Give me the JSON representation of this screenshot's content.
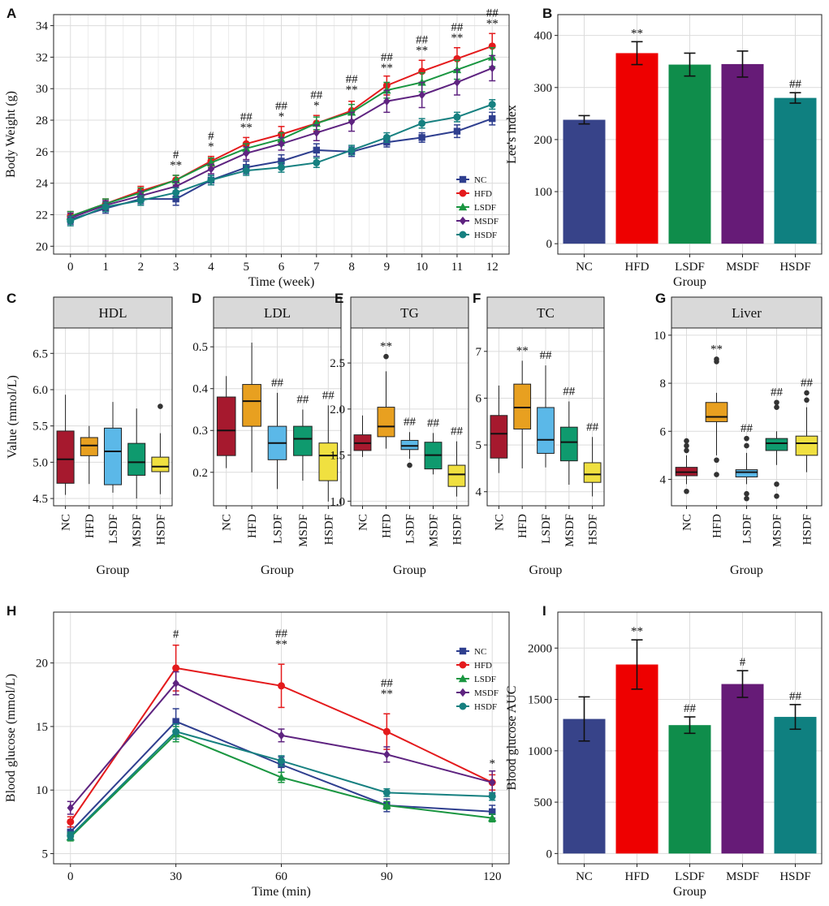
{
  "chart_data": [
    {
      "id": "A",
      "panel_label": "A",
      "type": "line",
      "xlabel": "Time (week)",
      "ylabel": "Body Weight (g)",
      "x": [
        0,
        1,
        2,
        3,
        4,
        5,
        6,
        7,
        8,
        9,
        10,
        11,
        12
      ],
      "xticks": [
        "0",
        "1",
        "2",
        "3",
        "4",
        "5",
        "6",
        "7",
        "8",
        "9",
        "10",
        "11",
        "12"
      ],
      "ylim": [
        19.5,
        34.7
      ],
      "yticks": [
        20,
        22,
        24,
        26,
        28,
        30,
        32,
        34
      ],
      "series": [
        {
          "name": "NC",
          "color": "#2f3f8f",
          "marker": "square",
          "values": [
            21.7,
            22.4,
            23.0,
            23.0,
            24.2,
            25.0,
            25.4,
            26.1,
            26.0,
            26.6,
            26.9,
            27.3,
            28.1
          ],
          "err": [
            0.3,
            0.3,
            0.3,
            0.4,
            0.3,
            0.4,
            0.4,
            0.4,
            0.3,
            0.3,
            0.3,
            0.4,
            0.4
          ]
        },
        {
          "name": "HFD",
          "color": "#e41a1c",
          "marker": "circle",
          "values": [
            21.9,
            22.7,
            23.5,
            24.2,
            25.4,
            26.5,
            27.1,
            27.8,
            28.6,
            30.2,
            31.1,
            31.9,
            32.7
          ],
          "err": [
            0.3,
            0.3,
            0.3,
            0.3,
            0.3,
            0.4,
            0.5,
            0.5,
            0.6,
            0.6,
            0.7,
            0.7,
            0.8
          ]
        },
        {
          "name": "LSDF",
          "color": "#1a9641",
          "marker": "triangle",
          "values": [
            21.9,
            22.7,
            23.4,
            24.2,
            25.3,
            26.2,
            26.8,
            27.8,
            28.5,
            29.9,
            30.4,
            31.2,
            32.0
          ],
          "err": [
            0.3,
            0.3,
            0.3,
            0.3,
            0.3,
            0.3,
            0.4,
            0.4,
            0.5,
            0.5,
            0.6,
            0.6,
            0.6
          ]
        },
        {
          "name": "MSDF",
          "color": "#5e2380",
          "marker": "diamond",
          "values": [
            21.8,
            22.6,
            23.2,
            23.8,
            24.9,
            25.9,
            26.5,
            27.2,
            27.9,
            29.2,
            29.6,
            30.4,
            31.3
          ],
          "err": [
            0.3,
            0.3,
            0.3,
            0.3,
            0.3,
            0.4,
            0.4,
            0.5,
            0.6,
            0.7,
            0.8,
            0.8,
            0.8
          ]
        },
        {
          "name": "HSDF",
          "color": "#168080",
          "marker": "circle",
          "values": [
            21.6,
            22.5,
            22.9,
            23.4,
            24.2,
            24.8,
            25.0,
            25.3,
            26.1,
            26.9,
            27.8,
            28.2,
            29.0
          ],
          "err": [
            0.3,
            0.3,
            0.3,
            0.3,
            0.3,
            0.3,
            0.3,
            0.3,
            0.3,
            0.3,
            0.3,
            0.3,
            0.3
          ]
        }
      ],
      "annotations": [
        {
          "x": 3,
          "y": 24.9,
          "lines": [
            "#",
            "**"
          ]
        },
        {
          "x": 4,
          "y": 26.1,
          "lines": [
            "#",
            "*"
          ]
        },
        {
          "x": 5,
          "y": 27.3,
          "lines": [
            "##",
            "**"
          ]
        },
        {
          "x": 6,
          "y": 28.0,
          "lines": [
            "##",
            "*"
          ]
        },
        {
          "x": 7,
          "y": 28.7,
          "lines": [
            "##",
            "*"
          ]
        },
        {
          "x": 8,
          "y": 29.7,
          "lines": [
            "##",
            "**"
          ]
        },
        {
          "x": 9,
          "y": 31.1,
          "lines": [
            "##",
            "**"
          ]
        },
        {
          "x": 10,
          "y": 32.2,
          "lines": [
            "##",
            "**"
          ]
        },
        {
          "x": 11,
          "y": 33.0,
          "lines": [
            "##",
            "**"
          ]
        },
        {
          "x": 12,
          "y": 33.9,
          "lines": [
            "##",
            "**"
          ]
        }
      ],
      "legend": "bottom-right"
    },
    {
      "id": "B",
      "panel_label": "B",
      "type": "bar",
      "xlabel": "Group",
      "ylabel": "Lee's index",
      "categories": [
        "NC",
        "HFD",
        "LSDF",
        "MSDF",
        "HSDF"
      ],
      "values": [
        238,
        366,
        344,
        345,
        280
      ],
      "err": [
        8,
        22,
        22,
        25,
        10
      ],
      "colors": [
        "#374389",
        "#ee0000",
        "#0f8d4b",
        "#661b77",
        "#0f8080"
      ],
      "sig": [
        "",
        "**",
        "",
        "",
        "##"
      ],
      "ylim": [
        -20,
        440
      ],
      "yticks": [
        0,
        100,
        200,
        300,
        400
      ]
    },
    {
      "id": "C",
      "panel_label": "C",
      "type": "box",
      "strip": "HDL",
      "xlabel": "Group",
      "ylabel": "Value (mmol/L)",
      "categories": [
        "NC",
        "HFD",
        "LSDF",
        "MSDF",
        "HSDF"
      ],
      "colors": [
        "#a6192e",
        "#e8a020",
        "#5bb8e8",
        "#0f9a6e",
        "#f0e040"
      ],
      "ylim": [
        4.4,
        6.85
      ],
      "yticks": [
        4.5,
        5.0,
        5.5,
        6.0,
        6.5
      ],
      "boxes": [
        {
          "min": 4.55,
          "q1": 4.71,
          "median": 5.04,
          "q3": 5.43,
          "max": 5.93,
          "outliers": []
        },
        {
          "min": 4.7,
          "q1": 5.09,
          "median": 5.23,
          "q3": 5.34,
          "max": 5.5,
          "outliers": []
        },
        {
          "min": 4.58,
          "q1": 4.69,
          "median": 5.15,
          "q3": 5.47,
          "max": 5.83,
          "outliers": []
        },
        {
          "min": 4.5,
          "q1": 4.82,
          "median": 5.0,
          "q3": 5.26,
          "max": 5.74,
          "outliers": []
        },
        {
          "min": 4.56,
          "q1": 4.87,
          "median": 4.94,
          "q3": 5.07,
          "max": 5.4,
          "outliers": [
            5.77
          ]
        }
      ],
      "sig": [
        "",
        "",
        "",
        "",
        ""
      ]
    },
    {
      "id": "D",
      "panel_label": "D",
      "type": "box",
      "strip": "LDL",
      "xlabel": "Group",
      "ylabel": "",
      "categories": [
        "NC",
        "HFD",
        "LSDF",
        "MSDF",
        "HSDF"
      ],
      "colors": [
        "#a6192e",
        "#e8a020",
        "#5bb8e8",
        "#0f9a6e",
        "#f0e040"
      ],
      "ylim": [
        0.12,
        0.545
      ],
      "yticks": [
        0.2,
        0.3,
        0.4,
        0.5
      ],
      "boxes": [
        {
          "min": 0.21,
          "q1": 0.24,
          "median": 0.3,
          "q3": 0.38,
          "max": 0.43,
          "outliers": []
        },
        {
          "min": 0.2,
          "q1": 0.31,
          "median": 0.37,
          "q3": 0.41,
          "max": 0.51,
          "outliers": []
        },
        {
          "min": 0.16,
          "q1": 0.23,
          "median": 0.27,
          "q3": 0.31,
          "max": 0.39,
          "outliers": []
        },
        {
          "min": 0.18,
          "q1": 0.24,
          "median": 0.28,
          "q3": 0.31,
          "max": 0.35,
          "outliers": []
        },
        {
          "min": 0.13,
          "q1": 0.18,
          "median": 0.24,
          "q3": 0.27,
          "max": 0.36,
          "outliers": []
        }
      ],
      "sig": [
        "",
        "",
        "##",
        "##",
        "##"
      ]
    },
    {
      "id": "E",
      "panel_label": "E",
      "type": "box",
      "strip": "TG",
      "xlabel": "Group",
      "ylabel": "",
      "categories": [
        "NC",
        "HFD",
        "LSDF",
        "MSDF",
        "HSDF"
      ],
      "colors": [
        "#a6192e",
        "#e8a020",
        "#5bb8e8",
        "#0f9a6e",
        "#f0e040"
      ],
      "ylim": [
        0.95,
        2.88
      ],
      "yticks": [
        1.0,
        1.5,
        2.0,
        2.5
      ],
      "boxes": [
        {
          "min": 1.48,
          "q1": 1.55,
          "median": 1.63,
          "q3": 1.72,
          "max": 1.93,
          "outliers": []
        },
        {
          "min": 1.57,
          "q1": 1.7,
          "median": 1.81,
          "q3": 2.02,
          "max": 2.41,
          "outliers": [
            2.57
          ]
        },
        {
          "min": 1.46,
          "q1": 1.56,
          "median": 1.6,
          "q3": 1.66,
          "max": 1.75,
          "outliers": [
            1.39
          ]
        },
        {
          "min": 1.29,
          "q1": 1.35,
          "median": 1.5,
          "q3": 1.64,
          "max": 1.74,
          "outliers": []
        },
        {
          "min": 1.05,
          "q1": 1.16,
          "median": 1.29,
          "q3": 1.39,
          "max": 1.65,
          "outliers": []
        }
      ],
      "sig": [
        "",
        "**",
        "##",
        "##",
        "##"
      ]
    },
    {
      "id": "F",
      "panel_label": "F",
      "type": "box",
      "strip": "TC",
      "xlabel": "Group",
      "ylabel": "",
      "categories": [
        "NC",
        "HFD",
        "LSDF",
        "MSDF",
        "HSDF"
      ],
      "colors": [
        "#a6192e",
        "#e8a020",
        "#5bb8e8",
        "#0f9a6e",
        "#f0e040"
      ],
      "ylim": [
        3.7,
        7.5
      ],
      "yticks": [
        4,
        5,
        6,
        7
      ],
      "boxes": [
        {
          "min": 4.4,
          "q1": 4.72,
          "median": 5.24,
          "q3": 5.63,
          "max": 6.27,
          "outliers": []
        },
        {
          "min": 4.5,
          "q1": 5.34,
          "median": 5.8,
          "q3": 6.3,
          "max": 6.8,
          "outliers": []
        },
        {
          "min": 4.52,
          "q1": 4.82,
          "median": 5.11,
          "q3": 5.8,
          "max": 6.7,
          "outliers": []
        },
        {
          "min": 4.15,
          "q1": 4.66,
          "median": 5.06,
          "q3": 5.38,
          "max": 5.93,
          "outliers": []
        },
        {
          "min": 3.9,
          "q1": 4.2,
          "median": 4.37,
          "q3": 4.62,
          "max": 5.17,
          "outliers": []
        }
      ],
      "sig": [
        "",
        "**",
        "##",
        "##",
        "##"
      ]
    },
    {
      "id": "G",
      "panel_label": "G",
      "type": "box",
      "strip": "Liver",
      "xlabel": "Group",
      "ylabel": "",
      "categories": [
        "NC",
        "HFD",
        "LSDF",
        "MSDF",
        "HSDF"
      ],
      "colors": [
        "#a6192e",
        "#e8a020",
        "#5bb8e8",
        "#0f9a6e",
        "#f0e040"
      ],
      "ylim": [
        2.9,
        10.3
      ],
      "yticks": [
        4,
        6,
        8,
        10
      ],
      "boxes": [
        {
          "min": 3.8,
          "q1": 4.15,
          "median": 4.3,
          "q3": 4.5,
          "max": 5.0,
          "outliers": [
            3.5,
            5.2,
            5.4,
            5.6
          ]
        },
        {
          "min": 5.0,
          "q1": 6.4,
          "median": 6.6,
          "q3": 7.2,
          "max": 7.6,
          "outliers": [
            4.2,
            4.8,
            8.9,
            9.0
          ]
        },
        {
          "min": 3.8,
          "q1": 4.1,
          "median": 4.3,
          "q3": 4.4,
          "max": 5.1,
          "outliers": [
            3.2,
            3.4,
            5.4,
            5.7
          ]
        },
        {
          "min": 4.6,
          "q1": 5.2,
          "median": 5.5,
          "q3": 5.7,
          "max": 6.0,
          "outliers": [
            3.3,
            3.8,
            7.0,
            7.2
          ]
        },
        {
          "min": 4.3,
          "q1": 5.0,
          "median": 5.5,
          "q3": 5.8,
          "max": 7.0,
          "outliers": [
            7.3,
            7.6
          ]
        }
      ],
      "sig": [
        "",
        "**",
        "##",
        "##",
        "##"
      ]
    },
    {
      "id": "H",
      "panel_label": "H",
      "type": "line",
      "xlabel": "Time (min)",
      "ylabel": "Blood glucose (mmol/L)",
      "x": [
        0,
        30,
        60,
        90,
        120
      ],
      "xticks": [
        "0",
        "30",
        "60",
        "90",
        "120"
      ],
      "ylim": [
        4.2,
        24.0
      ],
      "yticks": [
        5,
        10,
        15,
        20
      ],
      "series": [
        {
          "name": "NC",
          "color": "#2f3f8f",
          "marker": "square",
          "values": [
            6.7,
            15.4,
            12.0,
            8.8,
            8.3
          ],
          "err": [
            0.4,
            1.0,
            0.6,
            0.5,
            0.5
          ]
        },
        {
          "name": "HFD",
          "color": "#e41a1c",
          "marker": "circle",
          "values": [
            7.5,
            19.6,
            18.2,
            14.6,
            10.6
          ],
          "err": [
            0.4,
            1.8,
            1.7,
            1.4,
            0.6
          ]
        },
        {
          "name": "LSDF",
          "color": "#1a9641",
          "marker": "triangle",
          "values": [
            6.3,
            14.4,
            11.0,
            8.8,
            7.8
          ],
          "err": [
            0.3,
            0.6,
            0.4,
            0.3,
            0.3
          ]
        },
        {
          "name": "MSDF",
          "color": "#5e2380",
          "marker": "diamond",
          "values": [
            8.6,
            18.4,
            14.3,
            12.8,
            10.6
          ],
          "err": [
            0.5,
            0.9,
            0.5,
            0.6,
            0.9
          ]
        },
        {
          "name": "HSDF",
          "color": "#168080",
          "marker": "circle",
          "values": [
            6.4,
            14.6,
            12.3,
            9.8,
            9.5
          ],
          "err": [
            0.3,
            0.6,
            0.4,
            0.3,
            0.3
          ]
        }
      ],
      "annotations": [
        {
          "x": 30,
          "y": 22.0,
          "lines": [
            "#"
          ]
        },
        {
          "x": 60,
          "y": 21.2,
          "lines": [
            "##",
            "**"
          ]
        },
        {
          "x": 90,
          "y": 17.3,
          "lines": [
            "##",
            "**"
          ]
        },
        {
          "x": 120,
          "y": 11.8,
          "lines": [
            "*"
          ]
        }
      ],
      "legend": "top-right"
    },
    {
      "id": "I",
      "panel_label": "I",
      "type": "bar",
      "xlabel": "Group",
      "ylabel": "Blood glucose AUC",
      "categories": [
        "NC",
        "HFD",
        "LSDF",
        "MSDF",
        "HSDF"
      ],
      "values": [
        1310,
        1840,
        1250,
        1650,
        1330
      ],
      "err": [
        215,
        240,
        80,
        130,
        120
      ],
      "colors": [
        "#374389",
        "#ee0000",
        "#0f8d4b",
        "#661b77",
        "#0f8080"
      ],
      "sig": [
        "",
        "**",
        "##",
        "#",
        "##"
      ],
      "ylim": [
        -100,
        2350
      ],
      "yticks": [
        0,
        500,
        1000,
        1500,
        2000
      ]
    }
  ]
}
